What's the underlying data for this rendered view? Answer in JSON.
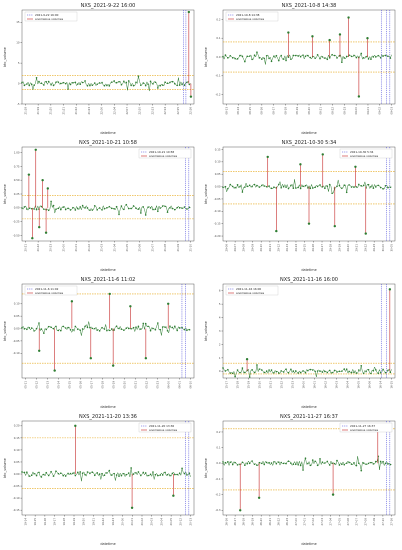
{
  "colors": {
    "normal": "#2e7d32",
    "anomaly": "#c62828",
    "threshold": "#e6a817",
    "vline": "#3b3bd6",
    "baseline": "#1b5e20"
  },
  "chart_data": [
    {
      "type": "line",
      "title": "NXS_2021-9-22 16:00",
      "xlabel": "datetime",
      "ylabel": "btc_volume",
      "ylim": [
        -5,
        18
      ],
      "yticks": [
        "15",
        "10",
        "5",
        "0",
        "-5"
      ],
      "yticks_values": [
        15,
        10,
        5,
        0,
        -5
      ],
      "thresholds": [
        2,
        -1.5
      ],
      "legend": {
        "vline": "2021-9-22 16:00",
        "anomaly": "anomalous volumes",
        "position": "top-left"
      },
      "x_tick_labels": [
        "21:18",
        "21:19",
        "21:20",
        "21:21",
        "21:22",
        "21:23",
        "22:00",
        "22:04",
        "22:07",
        "22:10",
        "22:13",
        "22:14",
        "22:15",
        "22:16"
      ],
      "anomalies": [
        {
          "x": 0.97,
          "y": 17.5
        },
        {
          "x": 0.982,
          "y": -3.2
        }
      ],
      "vlines": [
        0.94,
        0.953
      ]
    },
    {
      "type": "line",
      "title": "NXS_2021-10-8 14:38",
      "xlabel": "datetime",
      "ylabel": "btc_volume",
      "ylim": [
        -0.25,
        0.25
      ],
      "yticks": [
        "0.2",
        "0.1",
        "0.0",
        "-0.1",
        "-0.2"
      ],
      "yticks_values": [
        0.2,
        0.1,
        0.0,
        -0.1,
        -0.2
      ],
      "thresholds": [
        0.08,
        -0.08
      ],
      "legend": {
        "vline": "2021-10-8 14:38",
        "anomaly": "anomalous volumes",
        "position": "top-left"
      },
      "x_tick_labels": [
        "08-13",
        "08-14",
        "08-15",
        "08-16",
        "08-17",
        "08-18",
        "08-19",
        "08-20",
        "08-21",
        "08-22",
        "08-23",
        "09-00",
        "09-01",
        "09-02",
        "09-03"
      ],
      "anomalies": [
        {
          "x": 0.38,
          "y": 0.13
        },
        {
          "x": 0.52,
          "y": 0.11
        },
        {
          "x": 0.62,
          "y": 0.09
        },
        {
          "x": 0.68,
          "y": 0.12
        },
        {
          "x": 0.73,
          "y": 0.21
        },
        {
          "x": 0.79,
          "y": -0.21
        },
        {
          "x": 0.84,
          "y": 0.1
        }
      ],
      "vlines": [
        0.92,
        0.95,
        0.97
      ]
    },
    {
      "type": "line",
      "title": "NXS_2021-10-21 10:58",
      "xlabel": "datetime",
      "ylabel": "btc_volume",
      "ylim": [
        -0.6,
        1.1
      ],
      "yticks": [
        "1.00",
        "0.75",
        "0.50",
        "0.25",
        "0.00",
        "-0.25",
        "-0.50"
      ],
      "yticks_values": [
        1.0,
        0.75,
        0.5,
        0.25,
        0.0,
        -0.25,
        -0.5
      ],
      "thresholds": [
        0.22,
        -0.2
      ],
      "legend": {
        "vline": "2021-10-21 10:58",
        "anomaly": "anomalous volumes",
        "position": "top-right"
      },
      "x_tick_labels": [
        "20-21",
        "20-22",
        "20-23",
        "21-00",
        "21-01",
        "21-02",
        "21-03",
        "21-04",
        "21-05",
        "21-06",
        "21-07",
        "21-08",
        "21-09",
        "21-10"
      ],
      "anomalies": [
        {
          "x": 0.04,
          "y": 0.6
        },
        {
          "x": 0.06,
          "y": -0.55
        },
        {
          "x": 0.08,
          "y": 1.05
        },
        {
          "x": 0.1,
          "y": -0.35
        },
        {
          "x": 0.12,
          "y": 0.5
        },
        {
          "x": 0.14,
          "y": -0.45
        },
        {
          "x": 0.15,
          "y": 0.35
        }
      ],
      "vlines": [
        0.95,
        0.97
      ]
    },
    {
      "type": "line",
      "title": "NXS_2021-10-30 5:34",
      "xlabel": "datetime",
      "ylabel": "btc_volume",
      "ylim": [
        -0.22,
        0.16
      ],
      "yticks": [
        "0.15",
        "0.10",
        "0.05",
        "0.00",
        "-0.05",
        "-0.10",
        "-0.15",
        "-0.20"
      ],
      "yticks_values": [
        0.15,
        0.1,
        0.05,
        0.0,
        -0.05,
        -0.1,
        -0.15,
        -0.2
      ],
      "thresholds": [
        0.06,
        -0.07
      ],
      "legend": {
        "vline": "2021-10-30 5:34",
        "anomaly": "anomalous volumes",
        "position": "top-right"
      },
      "x_tick_labels": [
        "29-06",
        "29-07",
        "29-08",
        "29-09",
        "29-10",
        "29-11",
        "29-12",
        "29-13",
        "29-14",
        "29-15",
        "29-16",
        "29-17",
        "29-18",
        "29-19",
        "29-20",
        "29-21",
        "29-22",
        "29-23",
        "30-00",
        "30-05"
      ],
      "anomalies": [
        {
          "x": 0.26,
          "y": 0.12
        },
        {
          "x": 0.31,
          "y": -0.18
        },
        {
          "x": 0.45,
          "y": 0.09
        },
        {
          "x": 0.5,
          "y": -0.15
        },
        {
          "x": 0.58,
          "y": 0.13
        },
        {
          "x": 0.65,
          "y": -0.16
        },
        {
          "x": 0.77,
          "y": 0.08
        },
        {
          "x": 0.83,
          "y": -0.19
        }
      ],
      "vlines": [
        0.95,
        0.97
      ]
    },
    {
      "type": "line",
      "title": "NXS_2021-11-6 11:02",
      "xlabel": "datetime",
      "ylabel": "btc_volume",
      "ylim": [
        -0.2,
        0.18
      ],
      "yticks": [
        "0.10",
        "0.05",
        "0.00",
        "-0.05",
        "-0.10"
      ],
      "yticks_values": [
        0.1,
        0.05,
        0.0,
        -0.05,
        -0.1
      ],
      "thresholds": [
        0.14,
        -0.14
      ],
      "legend": {
        "vline": "2021-11-6 11:02",
        "anomaly": "anomalous volumes",
        "position": "top-left"
      },
      "x_tick_labels": [
        "05-11",
        "05-12",
        "05-13",
        "05-14",
        "05-15",
        "05-16",
        "05-17",
        "05-18",
        "05-19",
        "05-20",
        "05-21",
        "05-22",
        "05-23",
        "06-00",
        "06-01",
        "06-10"
      ],
      "anomalies": [
        {
          "x": 0.1,
          "y": -0.09
        },
        {
          "x": 0.19,
          "y": -0.17
        },
        {
          "x": 0.29,
          "y": 0.11
        },
        {
          "x": 0.4,
          "y": -0.12
        },
        {
          "x": 0.51,
          "y": 0.14
        },
        {
          "x": 0.53,
          "y": -0.15
        },
        {
          "x": 0.63,
          "y": 0.09
        },
        {
          "x": 0.72,
          "y": -0.12
        },
        {
          "x": 0.85,
          "y": 0.1
        }
      ],
      "vlines": [
        0.93,
        0.95
      ]
    },
    {
      "type": "line",
      "title": "NXS_2021-11-16 16:00",
      "xlabel": "datetime",
      "ylabel": "btc_volume",
      "ylim": [
        -0.5,
        6.5
      ],
      "yticks": [
        "6",
        "5",
        "4",
        "3",
        "2",
        "1",
        "0"
      ],
      "yticks_values": [
        6,
        5,
        4,
        3,
        2,
        1,
        0
      ],
      "thresholds": [
        0.6,
        -0.2
      ],
      "legend": {
        "vline": "2021-11-16 16:00",
        "anomaly": "anomalous volumes",
        "position": "top-left"
      },
      "x_tick_labels": [
        "15-17",
        "15-18",
        "15-19",
        "15-20",
        "15-21",
        "15-22",
        "15-23",
        "16-00",
        "16-01",
        "16-02",
        "16-03",
        "16-04",
        "16-05",
        "16-06",
        "16-14",
        "16-15"
      ],
      "anomalies": [
        {
          "x": 0.14,
          "y": 0.9
        },
        {
          "x": 0.97,
          "y": 6.1
        }
      ],
      "vlines": [
        0.92,
        0.95
      ]
    },
    {
      "type": "line",
      "title": "NXS_2021-11-20 13:36",
      "xlabel": "datetime",
      "ylabel": "btc_volume",
      "ylim": [
        -0.17,
        0.22
      ],
      "yticks": [
        "0.20",
        "0.15",
        "0.10",
        "0.05",
        "0.00",
        "-0.05",
        "-0.10",
        "-0.15"
      ],
      "yticks_values": [
        0.2,
        0.15,
        0.1,
        0.05,
        0.0,
        -0.05,
        -0.1,
        -0.15
      ],
      "thresholds": [
        0.15,
        -0.06
      ],
      "legend": {
        "vline": "2021-11-20 13:36",
        "anomaly": "anomalous volumes",
        "position": "top-right"
      },
      "x_tick_labels": [
        "19-14",
        "19-15",
        "19-16",
        "19-17",
        "19-18",
        "19-19",
        "19-20",
        "19-21",
        "19-22",
        "19-23",
        "20-00",
        "20-01",
        "20-02",
        "20-03",
        "20-04",
        "20-05",
        "20-12",
        "20-13"
      ],
      "anomalies": [
        {
          "x": 0.31,
          "y": 0.2
        },
        {
          "x": 0.64,
          "y": -0.14
        },
        {
          "x": 0.88,
          "y": -0.09
        }
      ],
      "vlines": [
        0.95,
        0.97
      ]
    },
    {
      "type": "line",
      "title": "NXS_2021-11-27 16:37",
      "xlabel": "datetime",
      "ylabel": "btc_volume",
      "ylim": [
        -0.33,
        0.27
      ],
      "yticks": [
        "0.2",
        "0.1",
        "0.0",
        "-0.1",
        "-0.2",
        "-0.3"
      ],
      "yticks_values": [
        0.2,
        0.1,
        0.0,
        -0.1,
        -0.2,
        -0.3
      ],
      "thresholds": [
        0.22,
        -0.17
      ],
      "legend": {
        "vline": "2021-11-27 16:37",
        "anomaly": "anomalous volumes",
        "position": "top-right"
      },
      "x_tick_labels": [
        "26-16",
        "26-17",
        "26-18",
        "26-19",
        "26-20",
        "26-21",
        "26-22",
        "26-23",
        "27-00",
        "27-01",
        "27-02",
        "27-03",
        "27-04",
        "27-05",
        "27-06",
        "27-07",
        "27-08",
        "27-09",
        "27-10",
        "27-16"
      ],
      "anomalies": [
        {
          "x": 0.1,
          "y": -0.3
        },
        {
          "x": 0.21,
          "y": -0.22
        },
        {
          "x": 0.64,
          "y": -0.2
        },
        {
          "x": 0.9,
          "y": 0.22
        }
      ],
      "vlines": [
        0.95,
        0.97
      ]
    }
  ]
}
